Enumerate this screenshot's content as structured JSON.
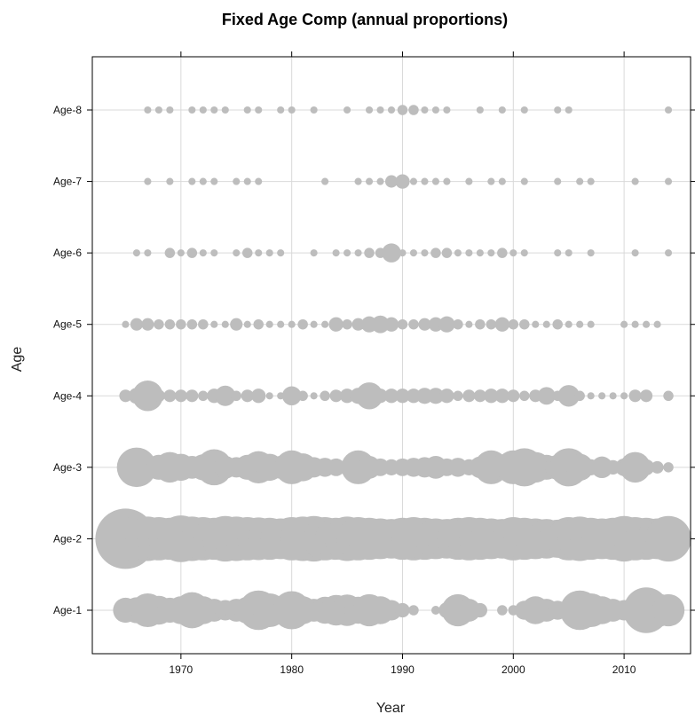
{
  "chart_data": {
    "type": "scatter",
    "title": "Fixed Age Comp (annual proportions)",
    "xlabel": "Year",
    "ylabel": "Age",
    "xlim": [
      1962,
      2016
    ],
    "x_ticks": [
      1970,
      1980,
      1990,
      2000,
      2010
    ],
    "x_tick_labels": [
      "1970",
      "1980",
      "1990",
      "2000",
      "2010"
    ],
    "categories": [
      "Age-1",
      "Age-2",
      "Age-3",
      "Age-4",
      "Age-5",
      "Age-6",
      "Age-7",
      "Age-8"
    ],
    "grid": true,
    "bubble_color": "#bdbdbd",
    "size_encoding": "proportion",
    "years": [
      1965,
      1966,
      1967,
      1968,
      1969,
      1970,
      1971,
      1972,
      1973,
      1974,
      1975,
      1976,
      1977,
      1978,
      1979,
      1980,
      1981,
      1982,
      1983,
      1984,
      1985,
      1986,
      1987,
      1988,
      1989,
      1990,
      1991,
      1992,
      1993,
      1994,
      1995,
      1996,
      1997,
      1998,
      1999,
      2000,
      2001,
      2002,
      2003,
      2004,
      2005,
      2006,
      2007,
      2008,
      2009,
      2010,
      2011,
      2012,
      2013,
      2014
    ],
    "series": [
      {
        "name": "Age-1",
        "values": [
          0.12,
          0.13,
          0.22,
          0.16,
          0.12,
          0.15,
          0.25,
          0.15,
          0.1,
          0.08,
          0.1,
          0.14,
          0.3,
          0.22,
          0.16,
          0.28,
          0.15,
          0.1,
          0.14,
          0.18,
          0.19,
          0.14,
          0.2,
          0.15,
          0.08,
          0.04,
          0.02,
          0,
          0.015,
          0.05,
          0.2,
          0.1,
          0.04,
          0,
          0.02,
          0.02,
          0.07,
          0.15,
          0.1,
          0.07,
          0.02,
          0.3,
          0.22,
          0.15,
          0.1,
          0.08,
          0.1,
          0.4,
          0.22,
          0.2
        ]
      },
      {
        "name": "Age-2",
        "values": [
          0.7,
          0.4,
          0.38,
          0.36,
          0.34,
          0.42,
          0.38,
          0.36,
          0.34,
          0.4,
          0.38,
          0.36,
          0.35,
          0.34,
          0.32,
          0.36,
          0.38,
          0.4,
          0.36,
          0.34,
          0.38,
          0.36,
          0.34,
          0.32,
          0.3,
          0.34,
          0.36,
          0.34,
          0.32,
          0.3,
          0.34,
          0.36,
          0.34,
          0.32,
          0.3,
          0.36,
          0.34,
          0.32,
          0.3,
          0.28,
          0.36,
          0.38,
          0.34,
          0.32,
          0.34,
          0.4,
          0.36,
          0.34,
          0.32,
          0.4
        ]
      },
      {
        "name": "Age-3",
        "values": [
          0,
          0.3,
          0.1,
          0.12,
          0.18,
          0.14,
          0.1,
          0.13,
          0.25,
          0.1,
          0.08,
          0.12,
          0.2,
          0.14,
          0.1,
          0.22,
          0.15,
          0.08,
          0.07,
          0.06,
          0.05,
          0.22,
          0.1,
          0.06,
          0.05,
          0.06,
          0.07,
          0.08,
          0.1,
          0.06,
          0.07,
          0.05,
          0.09,
          0.22,
          0.13,
          0.22,
          0.28,
          0.18,
          0.12,
          0.12,
          0.28,
          0.14,
          0.05,
          0.09,
          0.04,
          0.06,
          0.18,
          0.05,
          0.03,
          0.02
        ]
      },
      {
        "name": "Age-4",
        "values": [
          0.03,
          0.05,
          0.18,
          0.03,
          0.03,
          0.03,
          0.03,
          0.02,
          0.04,
          0.08,
          0.02,
          0.03,
          0.04,
          0.01,
          0.01,
          0.07,
          0.02,
          0.01,
          0.02,
          0.03,
          0.04,
          0.05,
          0.14,
          0.04,
          0.04,
          0.04,
          0.04,
          0.05,
          0.05,
          0.04,
          0.02,
          0.03,
          0.03,
          0.04,
          0.04,
          0.03,
          0.02,
          0.03,
          0.06,
          0.02,
          0.09,
          0.02,
          0.01,
          0.01,
          0.01,
          0.01,
          0.03,
          0.03,
          0,
          0.02
        ]
      },
      {
        "name": "Age-5",
        "values": [
          0.01,
          0.03,
          0.03,
          0.02,
          0.02,
          0.02,
          0.02,
          0.02,
          0.01,
          0.01,
          0.03,
          0.01,
          0.02,
          0.01,
          0.01,
          0.01,
          0.02,
          0.01,
          0.01,
          0.04,
          0.02,
          0.03,
          0.05,
          0.06,
          0.04,
          0.02,
          0.02,
          0.03,
          0.04,
          0.05,
          0.02,
          0.01,
          0.02,
          0.02,
          0.04,
          0.02,
          0.02,
          0.01,
          0.01,
          0.02,
          0.01,
          0.01,
          0.01,
          0,
          0,
          0.01,
          0.01,
          0.01,
          0.01,
          0
        ]
      },
      {
        "name": "Age-6",
        "values": [
          0,
          0.01,
          0.01,
          0,
          0.02,
          0.01,
          0.02,
          0.01,
          0.01,
          0,
          0.01,
          0.02,
          0.01,
          0.01,
          0.01,
          0,
          0,
          0.01,
          0,
          0.01,
          0.01,
          0.01,
          0.02,
          0.02,
          0.07,
          0.01,
          0.01,
          0.01,
          0.02,
          0.02,
          0.01,
          0.01,
          0.01,
          0.01,
          0.02,
          0.01,
          0.01,
          0,
          0,
          0.01,
          0.01,
          0,
          0.01,
          0,
          0,
          0,
          0.01,
          0,
          0,
          0.01
        ]
      },
      {
        "name": "Age-7",
        "values": [
          0,
          0,
          0.01,
          0,
          0.01,
          0,
          0.01,
          0.01,
          0.01,
          0,
          0.01,
          0.01,
          0.01,
          0,
          0,
          0,
          0,
          0,
          0.01,
          0,
          0,
          0.01,
          0.01,
          0.01,
          0.03,
          0.04,
          0.01,
          0.01,
          0.01,
          0.01,
          0,
          0.01,
          0,
          0.01,
          0.01,
          0,
          0.01,
          0,
          0,
          0.01,
          0,
          0.01,
          0.01,
          0,
          0,
          0,
          0.01,
          0,
          0,
          0.01
        ]
      },
      {
        "name": "Age-8",
        "values": [
          0,
          0,
          0.01,
          0.01,
          0.01,
          0,
          0.01,
          0.01,
          0.01,
          0.01,
          0,
          0.01,
          0.01,
          0,
          0.01,
          0.01,
          0,
          0.01,
          0,
          0,
          0.01,
          0,
          0.01,
          0.01,
          0.01,
          0.02,
          0.02,
          0.01,
          0.01,
          0.01,
          0,
          0,
          0.01,
          0,
          0.01,
          0,
          0.01,
          0,
          0,
          0.01,
          0.01,
          0,
          0,
          0,
          0,
          0,
          0,
          0,
          0,
          0.01
        ]
      }
    ]
  }
}
